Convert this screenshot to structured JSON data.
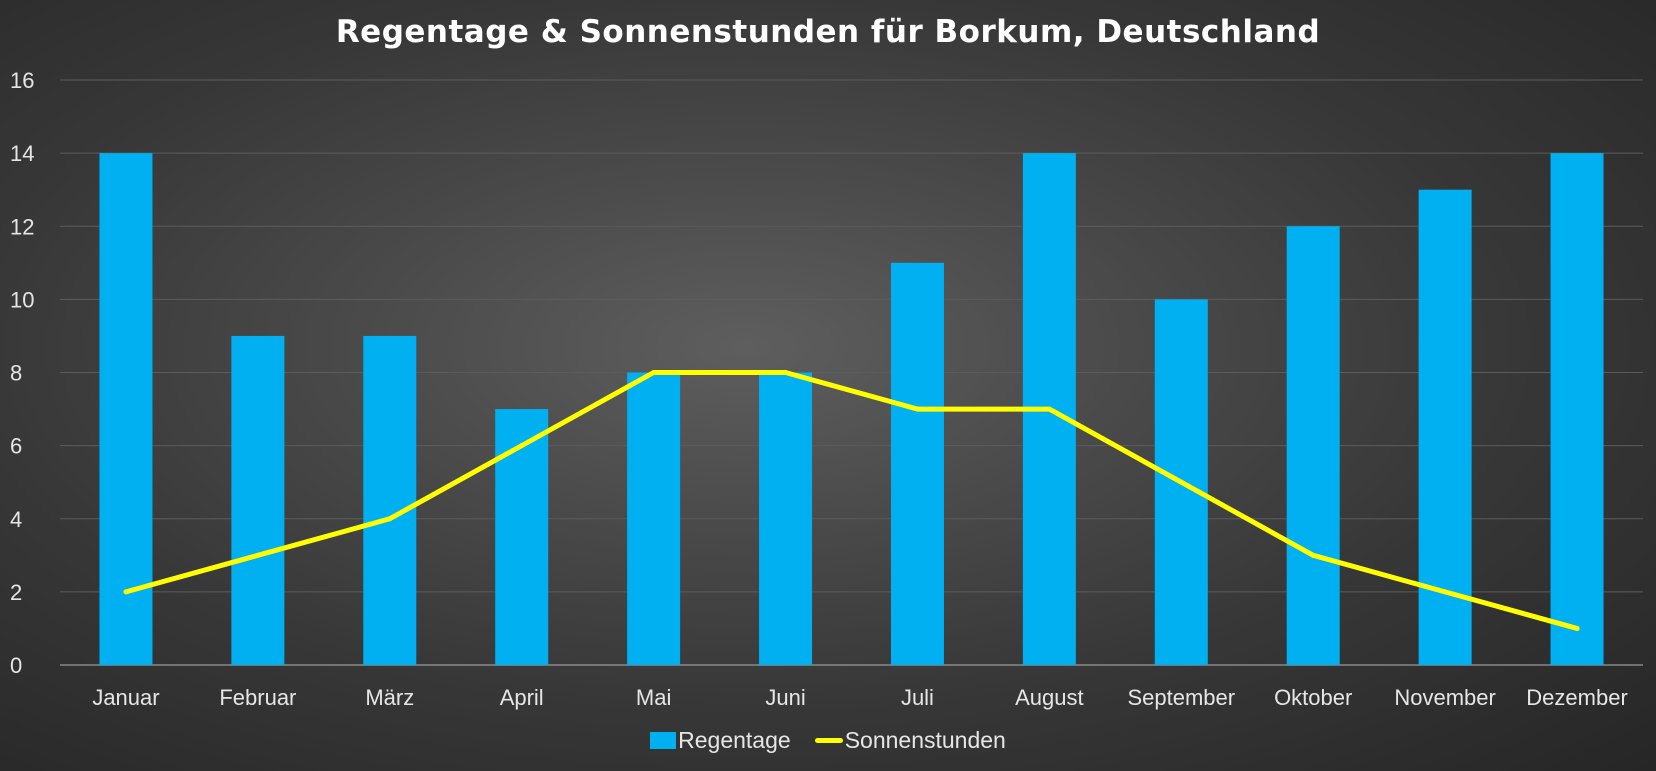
{
  "chart_data": {
    "type": "bar",
    "title": "Regentage & Sonnenstunden für Borkum, Deutschland",
    "categories": [
      "Januar",
      "Februar",
      "März",
      "April",
      "Mai",
      "Juni",
      "Juli",
      "August",
      "September",
      "Oktober",
      "November",
      "Dezember"
    ],
    "series": [
      {
        "name": "Regentage",
        "type": "bar",
        "color": "#00b0f0",
        "values": [
          14,
          9,
          9,
          7,
          8,
          8,
          11,
          14,
          10,
          12,
          13,
          14
        ]
      },
      {
        "name": "Sonnenstunden",
        "type": "line",
        "color": "#ffff00",
        "values": [
          2,
          3,
          4,
          6,
          8,
          8,
          7,
          7,
          5,
          3,
          2,
          1
        ]
      }
    ],
    "ylim": [
      0,
      16
    ],
    "yticks": [
      0,
      2,
      4,
      6,
      8,
      10,
      12,
      14,
      16
    ],
    "grid": true,
    "legend": "bottom"
  }
}
